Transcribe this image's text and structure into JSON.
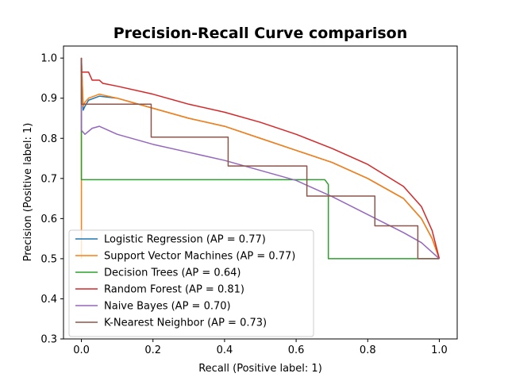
{
  "chart_data": {
    "type": "line",
    "title": "Precision-Recall Curve comparison",
    "xlabel": "Recall (Positive label: 1)",
    "ylabel": "Precision (Positive label: 1)",
    "xlim": [
      -0.05,
      1.05
    ],
    "ylim": [
      0.3,
      1.03
    ],
    "xticks": [
      "0.0",
      "0.2",
      "0.4",
      "0.6",
      "0.8",
      "1.0"
    ],
    "yticks": [
      "0.3",
      "0.4",
      "0.5",
      "0.6",
      "0.7",
      "0.8",
      "0.9",
      "1.0"
    ],
    "grid": false,
    "legend_position": "lower-left",
    "series": [
      {
        "name": "Logistic Regression (AP = 0.77)",
        "color": "#1f77b4",
        "step": false,
        "points": [
          [
            0.0,
            1.0
          ],
          [
            0.005,
            0.87
          ],
          [
            0.01,
            0.88
          ],
          [
            0.02,
            0.895
          ],
          [
            0.05,
            0.905
          ],
          [
            0.1,
            0.9
          ],
          [
            0.2,
            0.875
          ],
          [
            0.3,
            0.85
          ],
          [
            0.4,
            0.83
          ],
          [
            0.5,
            0.8
          ],
          [
            0.6,
            0.77
          ],
          [
            0.7,
            0.74
          ],
          [
            0.8,
            0.7
          ],
          [
            0.9,
            0.65
          ],
          [
            0.95,
            0.6
          ],
          [
            0.98,
            0.55
          ],
          [
            1.0,
            0.5
          ]
        ]
      },
      {
        "name": "Support Vector Machines (AP = 0.77)",
        "color": "#ff7f0e",
        "step": false,
        "points": [
          [
            0.0,
            0.5
          ],
          [
            0.0,
            1.0
          ],
          [
            0.005,
            0.88
          ],
          [
            0.01,
            0.89
          ],
          [
            0.02,
            0.9
          ],
          [
            0.05,
            0.91
          ],
          [
            0.1,
            0.9
          ],
          [
            0.2,
            0.875
          ],
          [
            0.3,
            0.85
          ],
          [
            0.4,
            0.83
          ],
          [
            0.5,
            0.8
          ],
          [
            0.6,
            0.77
          ],
          [
            0.7,
            0.74
          ],
          [
            0.8,
            0.7
          ],
          [
            0.9,
            0.65
          ],
          [
            0.95,
            0.6
          ],
          [
            0.98,
            0.55
          ],
          [
            1.0,
            0.5
          ]
        ]
      },
      {
        "name": "Decision Trees (AP = 0.64)",
        "color": "#2ca02c",
        "step": false,
        "points": [
          [
            0.0,
            1.0
          ],
          [
            0.0,
            0.697
          ],
          [
            0.68,
            0.697
          ],
          [
            0.69,
            0.685
          ],
          [
            0.69,
            0.5
          ],
          [
            1.0,
            0.5
          ]
        ]
      },
      {
        "name": "Random Forest (AP = 0.81)",
        "color": "#d62728",
        "step": false,
        "points": [
          [
            0.0,
            1.0
          ],
          [
            0.0,
            0.965
          ],
          [
            0.02,
            0.965
          ],
          [
            0.03,
            0.945
          ],
          [
            0.05,
            0.945
          ],
          [
            0.06,
            0.937
          ],
          [
            0.1,
            0.93
          ],
          [
            0.2,
            0.91
          ],
          [
            0.3,
            0.885
          ],
          [
            0.4,
            0.865
          ],
          [
            0.5,
            0.84
          ],
          [
            0.6,
            0.81
          ],
          [
            0.7,
            0.775
          ],
          [
            0.8,
            0.735
          ],
          [
            0.9,
            0.68
          ],
          [
            0.95,
            0.63
          ],
          [
            0.98,
            0.57
          ],
          [
            1.0,
            0.5
          ]
        ]
      },
      {
        "name": "Naive Bayes (AP = 0.70)",
        "color": "#9467bd",
        "step": false,
        "points": [
          [
            0.0,
            1.0
          ],
          [
            0.0,
            0.82
          ],
          [
            0.01,
            0.81
          ],
          [
            0.03,
            0.825
          ],
          [
            0.05,
            0.83
          ],
          [
            0.1,
            0.81
          ],
          [
            0.2,
            0.785
          ],
          [
            0.3,
            0.765
          ],
          [
            0.4,
            0.745
          ],
          [
            0.5,
            0.72
          ],
          [
            0.6,
            0.695
          ],
          [
            0.7,
            0.655
          ],
          [
            0.8,
            0.61
          ],
          [
            0.9,
            0.565
          ],
          [
            0.95,
            0.54
          ],
          [
            1.0,
            0.5
          ]
        ]
      },
      {
        "name": "K-Nearest Neighbor (AP = 0.73)",
        "color": "#8c564b",
        "step": false,
        "points": [
          [
            0.0,
            1.0
          ],
          [
            0.0,
            0.885
          ],
          [
            0.195,
            0.885
          ],
          [
            0.195,
            0.803
          ],
          [
            0.41,
            0.803
          ],
          [
            0.41,
            0.731
          ],
          [
            0.63,
            0.731
          ],
          [
            0.63,
            0.656
          ],
          [
            0.82,
            0.656
          ],
          [
            0.82,
            0.582
          ],
          [
            0.94,
            0.582
          ],
          [
            0.94,
            0.5
          ],
          [
            1.0,
            0.5
          ]
        ]
      }
    ]
  }
}
